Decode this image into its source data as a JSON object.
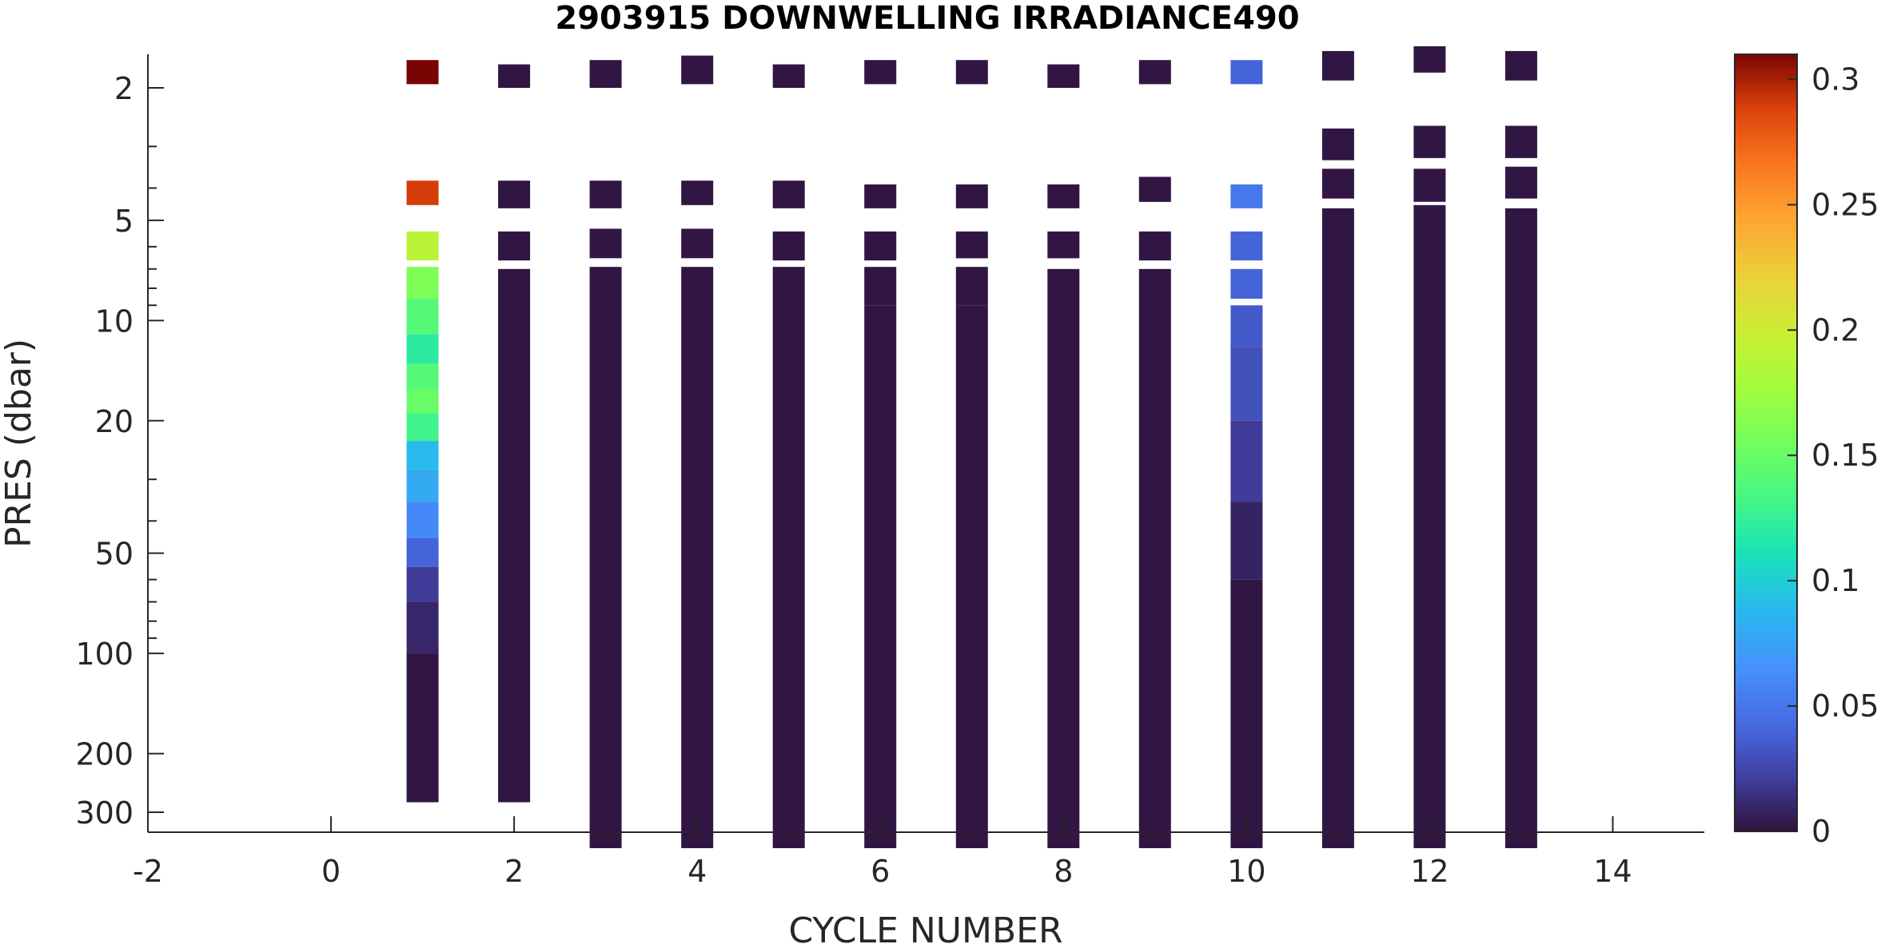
{
  "chart_data": {
    "type": "heatmap",
    "title": "2903915  DOWNWELLING IRRADIANCE490",
    "xlabel": "CYCLE NUMBER",
    "ylabel": "PRES (dbar)",
    "x_ticks": [
      "-2",
      "0",
      "2",
      "4",
      "6",
      "8",
      "10",
      "12",
      "14"
    ],
    "y_ticks": [
      "2",
      "5",
      "10",
      "20",
      "50",
      "100",
      "200",
      "300"
    ],
    "y_scale": "log",
    "y_reversed": true,
    "xlim": [
      -2,
      15
    ],
    "ylim": [
      1.7,
      380
    ],
    "colorbar": {
      "label": "",
      "ticks": [
        "0",
        "0.05",
        "0.1",
        "0.15",
        "0.2",
        "0.25",
        "0.3"
      ],
      "range": [
        0,
        0.31
      ],
      "colormap": "turbo"
    },
    "cycles": [
      {
        "cycle": 1,
        "segments": [
          [
            1.65,
            1.95,
            0.31
          ],
          [
            3.8,
            4.5,
            0.29
          ],
          [
            5.4,
            6.6,
            0.19
          ],
          [
            6.9,
            8.6,
            0.16
          ],
          [
            8.6,
            11,
            0.14
          ],
          [
            11,
            13.5,
            0.12
          ],
          [
            13.5,
            16,
            0.14
          ],
          [
            16,
            19,
            0.15
          ],
          [
            19,
            23,
            0.13
          ],
          [
            23,
            28,
            0.09
          ],
          [
            28,
            35,
            0.08
          ],
          [
            35,
            45,
            0.06
          ],
          [
            45,
            55,
            0.04
          ],
          [
            55,
            70,
            0.02
          ],
          [
            70,
            100,
            0.01
          ],
          [
            100,
            280,
            0.002
          ]
        ]
      },
      {
        "cycle": 2,
        "segments": [
          [
            1.7,
            2.0,
            0.002
          ],
          [
            3.8,
            4.6,
            0.002
          ],
          [
            5.4,
            6.6,
            0.002
          ],
          [
            7.0,
            280,
            0.002
          ]
        ]
      },
      {
        "cycle": 3,
        "segments": [
          [
            1.65,
            2.0,
            0.002
          ],
          [
            3.8,
            4.6,
            0.002
          ],
          [
            5.3,
            6.5,
            0.002
          ],
          [
            6.9,
            400,
            0.002
          ]
        ]
      },
      {
        "cycle": 4,
        "segments": [
          [
            1.6,
            1.95,
            0.002
          ],
          [
            3.8,
            4.5,
            0.002
          ],
          [
            5.3,
            6.5,
            0.002
          ],
          [
            6.9,
            400,
            0.002
          ]
        ]
      },
      {
        "cycle": 5,
        "segments": [
          [
            1.7,
            2.0,
            0.002
          ],
          [
            3.8,
            4.6,
            0.002
          ],
          [
            5.4,
            6.6,
            0.002
          ],
          [
            6.9,
            400,
            0.002
          ]
        ]
      },
      {
        "cycle": 6,
        "segments": [
          [
            1.65,
            1.95,
            0.002
          ],
          [
            3.9,
            4.6,
            0.002
          ],
          [
            5.4,
            6.6,
            0.002
          ],
          [
            6.9,
            9.0,
            0.002
          ],
          [
            9.0,
            400,
            0.002
          ]
        ]
      },
      {
        "cycle": 7,
        "segments": [
          [
            1.65,
            1.95,
            0.002
          ],
          [
            3.9,
            4.6,
            0.002
          ],
          [
            5.4,
            6.5,
            0.002
          ],
          [
            6.9,
            9.0,
            0.002
          ],
          [
            9.0,
            400,
            0.002
          ]
        ]
      },
      {
        "cycle": 8,
        "segments": [
          [
            1.7,
            2.0,
            0.002
          ],
          [
            3.9,
            4.6,
            0.002
          ],
          [
            5.4,
            6.5,
            0.002
          ],
          [
            7.0,
            400,
            0.002
          ]
        ]
      },
      {
        "cycle": 9,
        "segments": [
          [
            1.65,
            1.95,
            0.002
          ],
          [
            3.7,
            4.4,
            0.002
          ],
          [
            5.4,
            6.6,
            0.002
          ],
          [
            7.0,
            400,
            0.002
          ]
        ]
      },
      {
        "cycle": 10,
        "segments": [
          [
            1.65,
            1.95,
            0.04
          ],
          [
            3.9,
            4.6,
            0.05
          ],
          [
            5.4,
            6.6,
            0.04
          ],
          [
            7.0,
            8.6,
            0.04
          ],
          [
            9.0,
            12,
            0.035
          ],
          [
            12,
            20,
            0.03
          ],
          [
            20,
            35,
            0.02
          ],
          [
            35,
            60,
            0.008
          ],
          [
            60,
            400,
            0.002
          ]
        ]
      },
      {
        "cycle": 11,
        "segments": [
          [
            1.55,
            1.9,
            0.002
          ],
          [
            2.65,
            3.3,
            0.002
          ],
          [
            3.5,
            4.3,
            0.002
          ],
          [
            4.6,
            400,
            0.002
          ]
        ]
      },
      {
        "cycle": 12,
        "segments": [
          [
            1.5,
            1.8,
            0.002
          ],
          [
            2.6,
            3.25,
            0.002
          ],
          [
            3.5,
            4.4,
            0.002
          ],
          [
            4.5,
            400,
            0.002
          ]
        ]
      },
      {
        "cycle": 13,
        "segments": [
          [
            1.55,
            1.9,
            0.002
          ],
          [
            2.6,
            3.25,
            0.002
          ],
          [
            3.45,
            4.3,
            0.002
          ],
          [
            4.6,
            400,
            0.002
          ]
        ]
      }
    ]
  }
}
